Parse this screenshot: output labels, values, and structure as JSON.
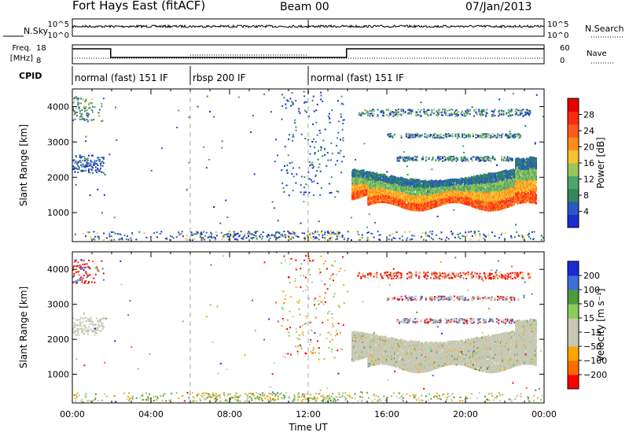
{
  "header": {
    "station": "Fort Hays East (fitACF)",
    "beam": "Beam 00",
    "date": "07/Jan/2013"
  },
  "panels": {
    "nsky_label": "N.Sky",
    "nsky_ticks": [
      "10^5",
      "10^0"
    ],
    "nsearch_label": "N.Search",
    "nsearch_ticks": [
      "10^5",
      "10^0"
    ],
    "freq_label": "Freq.",
    "freq_unit": "[MHz]",
    "freq_ticks": [
      "18",
      "8"
    ],
    "nave_label": "Nave",
    "nave_ticks": [
      "60",
      "0"
    ],
    "cpid_label": "CPID",
    "cpid_modes": [
      {
        "name": "normal (fast) 151 IF",
        "start_h": 0,
        "end_h": 6
      },
      {
        "name": "rbsp 200 IF",
        "start_h": 6,
        "end_h": 12
      },
      {
        "name": "normal (fast) 151 IF",
        "start_h": 12,
        "end_h": 24
      }
    ]
  },
  "colors": {
    "power_scale": [
      "#1e2bd0",
      "#2b57c0",
      "#2f8a5a",
      "#4fa56a",
      "#98c65a",
      "#f4c430",
      "#ff8c1a",
      "#ff5a1e",
      "#ff2a14",
      "#e60000"
    ],
    "velocity_scale": [
      "#ff0000",
      "#ff6a00",
      "#ffa500",
      "#c8c8b4",
      "#c8c8b4",
      "#8acb5a",
      "#4c9a3a",
      "#3f6fd8",
      "#1a2ad4"
    ]
  },
  "chart_data": [
    {
      "type": "heatmap",
      "name": "power",
      "xlabel": "",
      "ylabel": "Slant Range [km]",
      "x_ticks": [
        "00:00",
        "04:00",
        "08:00",
        "12:00",
        "16:00",
        "20:00",
        "00:00"
      ],
      "xlim_hours": [
        0,
        24
      ],
      "ylim_km": [
        180,
        4500
      ],
      "y_ticks": [
        1000,
        2000,
        3000,
        4000
      ],
      "colorbar": {
        "label": "Power [dB]",
        "ticks": [
          4,
          8,
          12,
          16,
          20,
          24,
          28
        ],
        "range": [
          0,
          32
        ]
      },
      "dashed_time_markers_h": [
        6,
        12
      ]
    },
    {
      "type": "heatmap",
      "name": "velocity",
      "xlabel": "Time UT",
      "ylabel": "Slant Range [km]",
      "x_ticks": [
        "00:00",
        "04:00",
        "08:00",
        "12:00",
        "16:00",
        "20:00",
        "00:00"
      ],
      "xlim_hours": [
        0,
        24
      ],
      "ylim_km": [
        180,
        4500
      ],
      "y_ticks": [
        1000,
        2000,
        3000,
        4000
      ],
      "colorbar": {
        "label": "Velocity [m s⁻¹]",
        "ticks": [
          200,
          100,
          50,
          15,
          -15,
          -50,
          -100,
          -200
        ],
        "range": [
          -250,
          250
        ]
      },
      "dashed_time_markers_h": [
        6,
        12
      ]
    }
  ]
}
